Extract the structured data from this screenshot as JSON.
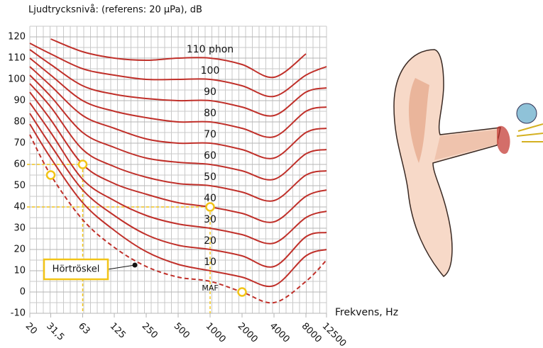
{
  "chart_data": {
    "type": "line",
    "title": "Ljudtrycksnivå: (referens: 20 μPa), dB",
    "x_label": "Frekvens, Hz",
    "annotation": "Hörtröskel",
    "x": [
      20,
      31.5,
      63,
      125,
      250,
      500,
      1000,
      2000,
      4000,
      8000,
      12500
    ],
    "xlim": [
      20,
      12500
    ],
    "xticks": [
      20,
      {
        "value": 31.5,
        "label": "31,5"
      },
      63,
      125,
      250,
      500,
      1000,
      2000,
      4000,
      8000,
      12500
    ],
    "x_log": true,
    "ylim": [
      -10,
      120
    ],
    "yticks": [
      -10,
      0,
      10,
      20,
      30,
      40,
      50,
      60,
      70,
      80,
      90,
      100,
      110,
      120
    ],
    "grid": true,
    "series": [
      {
        "name": "110 phon",
        "color": "#c0302a",
        "values": [
          null,
          119,
          113,
          110,
          109,
          110,
          110,
          107,
          101,
          112,
          null
        ]
      },
      {
        "name": "100",
        "color": "#c0302a",
        "values": [
          117,
          112,
          105,
          102,
          100,
          100,
          100,
          97,
          92,
          102,
          106
        ]
      },
      {
        "name": "90",
        "color": "#c0302a",
        "values": [
          114,
          107,
          97,
          93,
          91,
          90,
          90,
          87,
          83,
          94,
          96
        ]
      },
      {
        "name": "80",
        "color": "#c0302a",
        "values": [
          110,
          102,
          90,
          85,
          82,
          80,
          80,
          77,
          73,
          85,
          87
        ]
      },
      {
        "name": "70",
        "color": "#c0302a",
        "values": [
          106,
          97,
          83,
          77,
          72,
          70,
          70,
          67,
          63,
          75,
          77
        ]
      },
      {
        "name": "60",
        "color": "#c0302a",
        "values": [
          102,
          92,
          75,
          68,
          63,
          61,
          60,
          57,
          53,
          65,
          67
        ]
      },
      {
        "name": "50",
        "color": "#c0302a",
        "values": [
          98,
          87,
          67,
          59,
          54,
          51,
          50,
          47,
          43,
          55,
          57
        ]
      },
      {
        "name": "40",
        "color": "#c0302a",
        "values": [
          94,
          81,
          60,
          51,
          46,
          42,
          40,
          37,
          33,
          45,
          48
        ]
      },
      {
        "name": "30",
        "color": "#c0302a",
        "values": [
          89,
          75,
          53,
          43,
          36,
          32,
          30,
          27,
          23,
          35,
          38
        ]
      },
      {
        "name": "20",
        "color": "#c0302a",
        "values": [
          84,
          69,
          48,
          36,
          27,
          22,
          20,
          17,
          12,
          26,
          28
        ]
      },
      {
        "name": "10",
        "color": "#c0302a",
        "values": [
          79,
          63,
          42,
          29,
          19,
          13,
          10,
          7,
          3,
          17,
          20
        ]
      },
      {
        "name": "MAF",
        "color": "#c0302a",
        "dashed": true,
        "values": [
          74,
          55,
          34,
          21,
          12,
          7,
          5,
          0,
          -5,
          5,
          15
        ]
      }
    ],
    "markers": [
      {
        "x": 31.5,
        "y": 55
      },
      {
        "x": 63,
        "y": 60,
        "guide": true
      },
      {
        "x": 1000,
        "y": 40,
        "guide": true
      },
      {
        "x": 2000,
        "y": 0
      }
    ],
    "marker_color": "#f2c417"
  }
}
